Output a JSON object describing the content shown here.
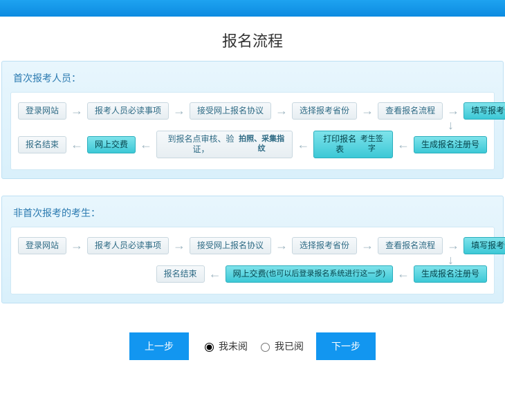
{
  "page": {
    "title": "报名流程"
  },
  "colors": {
    "topbar_from": "#1ea3f0",
    "topbar_to": "#0c8be0",
    "panel_border": "#bde0f3",
    "panel_bg_from": "#e8f6fd",
    "panel_bg_to": "#d9f0fb",
    "flow_border": "#cfe8f5",
    "plain_bg_from": "#f6f9fb",
    "plain_bg_to": "#e7eef2",
    "plain_border": "#c8d7df",
    "plain_text": "#2f6b85",
    "teal_bg_from": "#7fe3eb",
    "teal_bg_to": "#3cc8d6",
    "teal_border": "#2aaebd",
    "teal_text": "#05434b",
    "arrow": "#9fb6c2",
    "btn": "#1296f0"
  },
  "sections": [
    {
      "title": "首次报考人员：",
      "rows": [
        {
          "dir": "right",
          "nodes": [
            {
              "label": "登录网站",
              "style": "plain"
            },
            {
              "label": "报考人员必读事项",
              "style": "plain"
            },
            {
              "label": "接受网上报名协议",
              "style": "plain"
            },
            {
              "label": "选择报考省份",
              "style": "plain"
            },
            {
              "label": "查看报名流程",
              "style": "plain"
            },
            {
              "label": "填写报考信息",
              "style": "teal"
            }
          ]
        },
        {
          "dir": "left",
          "nodes": [
            {
              "label": "报名结束",
              "style": "plain"
            },
            {
              "label": "网上交费",
              "style": "teal"
            },
            {
              "label": "到报名点审核、验证，",
              "label2": "拍照、采集指纹",
              "style": "plain",
              "bold2": true
            },
            {
              "label": "打印报名表",
              "label2": "考生签字",
              "style": "teal"
            },
            {
              "label": "生成报名注册号",
              "style": "teal"
            }
          ]
        }
      ]
    },
    {
      "title": "非首次报考的考生：",
      "rows": [
        {
          "dir": "right",
          "nodes": [
            {
              "label": "登录网站",
              "style": "plain"
            },
            {
              "label": "报考人员必读事项",
              "style": "plain"
            },
            {
              "label": "接受网上报名协议",
              "style": "plain"
            },
            {
              "label": "选择报考省份",
              "style": "plain"
            },
            {
              "label": "查看报名流程",
              "style": "plain"
            },
            {
              "label": "填写报考信息",
              "style": "teal"
            }
          ]
        },
        {
          "dir": "left",
          "nodes": [
            {
              "label": "报名结束",
              "style": "plain"
            },
            {
              "label": "网上交费",
              "label2": "(也可以后登录报名系统进行这一步)",
              "style": "teal"
            },
            {
              "label": "生成报名注册号",
              "style": "teal"
            }
          ]
        }
      ]
    }
  ],
  "footer": {
    "prev": "上一步",
    "next": "下一步",
    "radio_unread": "我未阅",
    "radio_read": "我已阅",
    "selected": "unread"
  },
  "glyphs": {
    "right": "→",
    "left": "←",
    "down": "↓"
  }
}
